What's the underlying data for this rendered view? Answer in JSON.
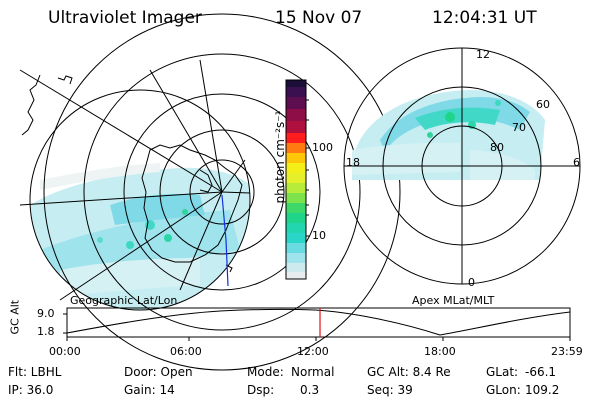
{
  "header": {
    "title": "Ultraviolet Imager",
    "date": "15 Nov 07",
    "time": "12:04:31 UT"
  },
  "colorbar": {
    "unit_label": "photon cm⁻²s⁻¹",
    "ticks": [
      "100",
      "10"
    ],
    "colors": [
      "#1b0f3a",
      "#5c0e4e",
      "#b0103d",
      "#ff1d1d",
      "#ff7a10",
      "#ffc60a",
      "#e6f02a",
      "#7ee24a",
      "#1ed58a",
      "#2ad6c8",
      "#9fe3ec",
      "#e8eef0"
    ]
  },
  "left_map": {
    "caption": "Geographic Lat/Lon"
  },
  "right_map": {
    "caption": "Apex MLat/MLT",
    "mlt_labels": [
      "12",
      "18",
      "6",
      "0"
    ],
    "lat_labels": [
      "60",
      "70",
      "80"
    ]
  },
  "orbit": {
    "ylabel": "GC Alt",
    "ytick_high": "9.0",
    "ytick_low": "1.8",
    "xticks": [
      "00:00",
      "06:00",
      "12:00",
      "18:00",
      "23:59"
    ],
    "current_time_fraction": 0.503
  },
  "info": {
    "filter": "Flt: LBHL",
    "door": "Door: Open",
    "mode_label": "Mode:",
    "mode_value": "Normal",
    "gc_alt": "GC Alt: 8.4 Re",
    "glat_label": "GLat:",
    "glat_value": "-66.1",
    "ip": "IP: 36.0",
    "gain": "Gain: 14",
    "dsp_label": "Dsp:",
    "dsp_value": "0.3",
    "seq": "Seq: 39",
    "glon_label": "GLon:",
    "glon_value": "109.2"
  }
}
